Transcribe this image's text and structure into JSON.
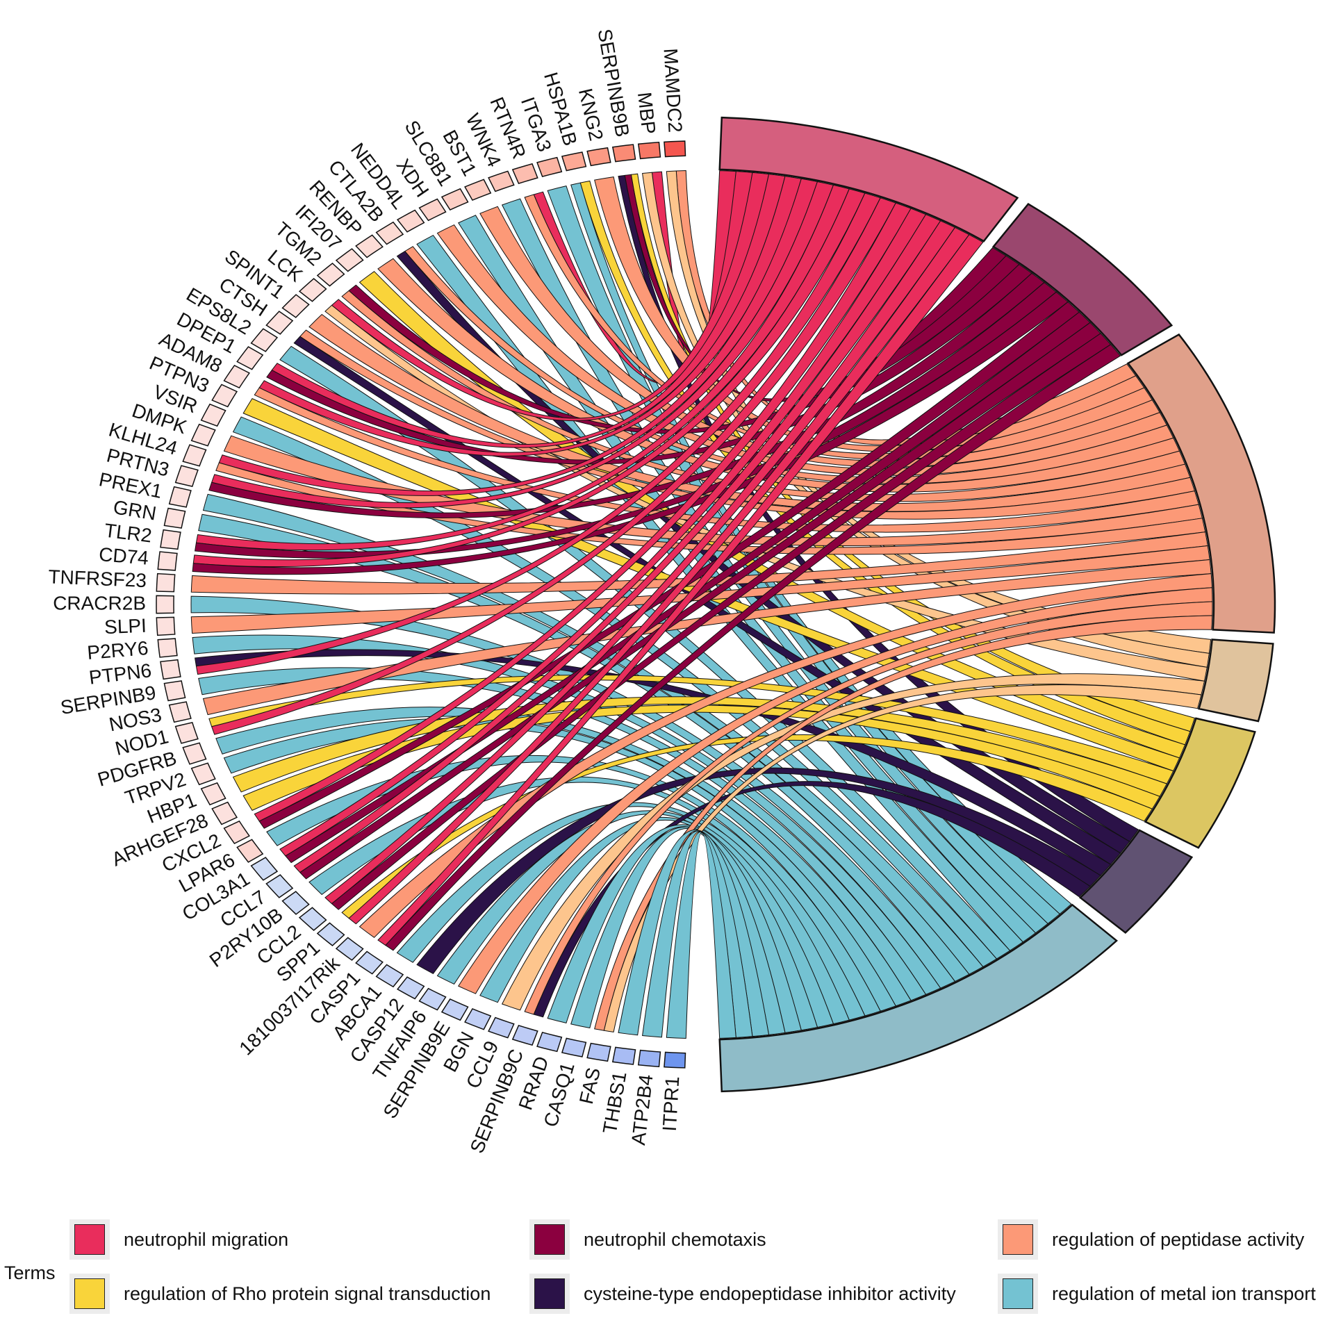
{
  "legend": {
    "title": "Terms",
    "items": [
      {
        "label": "neutrophil migration",
        "color": "#E92D5C"
      },
      {
        "label": "neutrophil chemotaxis",
        "color": "#8B003F"
      },
      {
        "label": "regulation of peptidase activity",
        "color": "#FC9977"
      },
      {
        "label": "regulation of Rho protein signal transduction",
        "color": "#F9D43A"
      },
      {
        "label": "cysteine-type endopeptidase inhibitor activity",
        "color": "#2B1248"
      },
      {
        "label": "regulation of metal ion transport",
        "color": "#74C2D2"
      }
    ]
  },
  "chart_data": {
    "type": "chord",
    "terms": [
      {
        "name": "neutrophil migration",
        "color": "#E92D5C",
        "sector_color": "#D55F7E"
      },
      {
        "name": "neutrophil chemotaxis",
        "color": "#8B003F",
        "sector_color": "#9A476E"
      },
      {
        "name": "regulation of peptidase activity",
        "color": "#FC9977",
        "sector_color": "#E0A08A"
      },
      {
        "name": "",
        "color": "#FDC58D",
        "sector_color": "#E0C39D"
      },
      {
        "name": "regulation of Rho protein signal transduction",
        "color": "#F9D43A",
        "sector_color": "#DCC662"
      },
      {
        "name": "cysteine-type endopeptidase inhibitor activity",
        "color": "#2B1248",
        "sector_color": "#605272"
      },
      {
        "name": "regulation of metal ion transport",
        "color": "#74C2D2",
        "sector_color": "#8FBCC8"
      }
    ],
    "genes": [
      "MAMDC2",
      "MBP",
      "SERPINB9B",
      "KNG2",
      "HSPA1B",
      "ITGA3",
      "RTN4R",
      "WNK4",
      "BST1",
      "SLC8B1",
      "XDH",
      "NEDD4L",
      "CTLA2B",
      "RENBP",
      "IFI207",
      "TGM2",
      "LCK",
      "SPINT1",
      "CTSH",
      "EPS8L2",
      "DPEP1",
      "ADAM8",
      "PTPN3",
      "VSIR",
      "DMPK",
      "KLHL24",
      "PRTN3",
      "PREX1",
      "GRN",
      "TLR2",
      "CD74",
      "TNFRSF23",
      "CRACR2B",
      "SLPI",
      "P2RY6",
      "PTPN6",
      "SERPINB9",
      "NOS3",
      "NOD1",
      "PDGFRB",
      "TRPV2",
      "HBP1",
      "ARHGEF28",
      "CXCL2",
      "LPAR6",
      "COL3A1",
      "CCL7",
      "P2RY10B",
      "CCL2",
      "SPP1",
      "1810037I17Rik",
      "CASP1",
      "ABCA1",
      "CASP12",
      "TNFAIP6",
      "SERPINB9E",
      "BGN",
      "CCL9",
      "SERPINB9C",
      "RRAD",
      "CASQ1",
      "FAS",
      "THBS1",
      "ATP2B4",
      "ITPR1"
    ],
    "gene_colors": [
      "#F4564F",
      "#F77866",
      "#FA8B75",
      "#FB9A84",
      "#FCA995",
      "#FCB4A3",
      "#FCBDAF",
      "#FCC5B9",
      "#FCCBBF",
      "#FCCFC5",
      "#FCD3CB",
      "#FCD7D0",
      "#FCDAD3",
      "#FCDCD6",
      "#FCDED9",
      "#FCDFDB",
      "#FCE0DC",
      "#FCE1DD",
      "#FCE1DE",
      "#FCE1DE",
      "#FCE1DE",
      "#FCE1DE",
      "#FCE1DE",
      "#FCE1DE",
      "#FCE1DE",
      "#FCE1DE",
      "#FCE1DE",
      "#FCE1DE",
      "#FCE1DE",
      "#FCE1DE",
      "#FCE1DE",
      "#FCE1DE",
      "#FCE1DE",
      "#FCE1DE",
      "#FCE1DE",
      "#FCE1DE",
      "#FCE1DE",
      "#FCE1DE",
      "#FCE1DE",
      "#FCE1DE",
      "#FCE1DE",
      "#FCE1DE",
      "#FCE1DE",
      "#FCDCD8",
      "#FCD6D0",
      "#CFDCF5",
      "#CDDBF5",
      "#CCDAF5",
      "#CBD9F5",
      "#CAD8F5",
      "#C9D7F5",
      "#C8D6F5",
      "#C7D5F5",
      "#C6D4F5",
      "#C5D3F5",
      "#C3D1F5",
      "#C1CFF5",
      "#BFCDF5",
      "#BDCBF5",
      "#BACAF5",
      "#B6C7F5",
      "#B1C3F5",
      "#A8BCF4",
      "#9AB3F3",
      "#6E95EE"
    ],
    "links": [
      [
        0,
        2
      ],
      [
        0,
        3
      ],
      [
        1,
        0
      ],
      [
        1,
        3
      ],
      [
        2,
        4
      ],
      [
        2,
        1
      ],
      [
        2,
        5
      ],
      [
        3,
        2
      ],
      [
        4,
        4
      ],
      [
        4,
        6
      ],
      [
        5,
        6
      ],
      [
        6,
        0
      ],
      [
        6,
        2
      ],
      [
        7,
        6
      ],
      [
        8,
        2
      ],
      [
        9,
        6
      ],
      [
        10,
        2
      ],
      [
        11,
        6
      ],
      [
        12,
        2
      ],
      [
        12,
        5
      ],
      [
        13,
        2
      ],
      [
        14,
        4
      ],
      [
        15,
        1
      ],
      [
        15,
        2
      ],
      [
        16,
        0
      ],
      [
        16,
        3
      ],
      [
        17,
        2
      ],
      [
        18,
        2
      ],
      [
        18,
        5
      ],
      [
        19,
        6
      ],
      [
        20,
        0
      ],
      [
        20,
        1
      ],
      [
        21,
        0
      ],
      [
        21,
        2
      ],
      [
        22,
        4
      ],
      [
        23,
        6
      ],
      [
        24,
        2
      ],
      [
        25,
        0
      ],
      [
        25,
        2
      ],
      [
        26,
        0
      ],
      [
        26,
        1
      ],
      [
        27,
        6
      ],
      [
        28,
        6
      ],
      [
        29,
        0
      ],
      [
        29,
        1
      ],
      [
        30,
        0
      ],
      [
        30,
        1
      ],
      [
        31,
        2
      ],
      [
        32,
        6
      ],
      [
        33,
        2
      ],
      [
        34,
        6
      ],
      [
        35,
        5
      ],
      [
        35,
        0
      ],
      [
        36,
        6
      ],
      [
        37,
        2
      ],
      [
        38,
        4
      ],
      [
        38,
        0
      ],
      [
        39,
        6
      ],
      [
        40,
        6
      ],
      [
        41,
        4
      ],
      [
        42,
        4
      ],
      [
        43,
        0
      ],
      [
        43,
        1
      ],
      [
        44,
        6
      ],
      [
        45,
        0
      ],
      [
        45,
        1
      ],
      [
        46,
        0
      ],
      [
        46,
        1
      ],
      [
        47,
        6
      ],
      [
        48,
        0
      ],
      [
        48,
        1
      ],
      [
        49,
        4
      ],
      [
        49,
        0
      ],
      [
        50,
        2
      ],
      [
        51,
        0
      ],
      [
        51,
        1
      ],
      [
        52,
        6
      ],
      [
        53,
        5
      ],
      [
        54,
        6
      ],
      [
        55,
        2
      ],
      [
        56,
        6
      ],
      [
        57,
        3
      ],
      [
        58,
        2
      ],
      [
        58,
        5
      ],
      [
        59,
        6
      ],
      [
        60,
        6
      ],
      [
        61,
        2
      ],
      [
        61,
        3
      ],
      [
        62,
        6
      ],
      [
        63,
        6
      ],
      [
        64,
        6
      ]
    ]
  }
}
